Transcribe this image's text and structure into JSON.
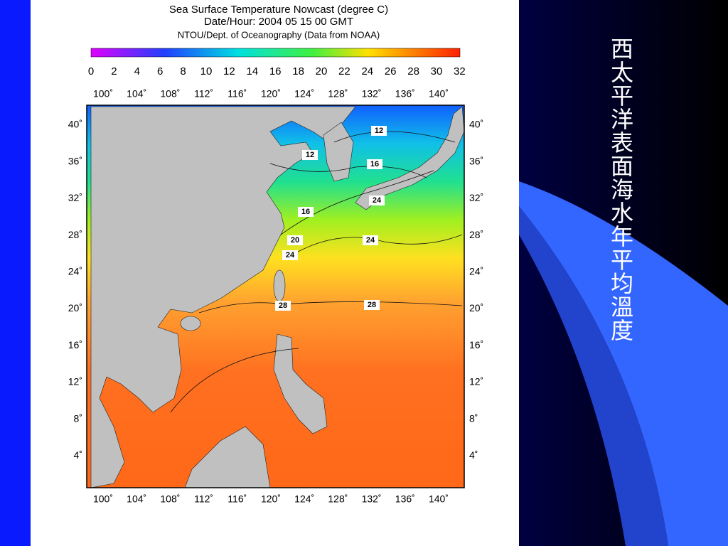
{
  "map": {
    "title_lines": [
      "Sea Surface Temperature Nowcast (degree C)",
      "Date/Hour: 2004 05 15 00  GMT",
      "NTOU/Dept. of Oceanography (Data from NOAA)"
    ],
    "colorbar_ticks": [
      "0",
      "2",
      "4",
      "6",
      "8",
      "10",
      "12",
      "14",
      "16",
      "18",
      "20",
      "22",
      "24",
      "26",
      "28",
      "30",
      "32"
    ],
    "longitude_labels": [
      "100˚",
      "104˚",
      "108˚",
      "112˚",
      "116˚",
      "120˚",
      "124˚",
      "128˚",
      "132˚",
      "136˚",
      "140˚"
    ],
    "latitude_labels": [
      "40˚",
      "36˚",
      "32˚",
      "28˚",
      "24˚",
      "20˚",
      "16˚",
      "12˚",
      "8˚",
      "4˚"
    ],
    "contour_labels": [
      "12",
      "12",
      "16",
      "16",
      "20",
      "24",
      "24",
      "24",
      "28",
      "28"
    ]
  },
  "side_text": "西太平洋表面海水年平均溫度"
}
